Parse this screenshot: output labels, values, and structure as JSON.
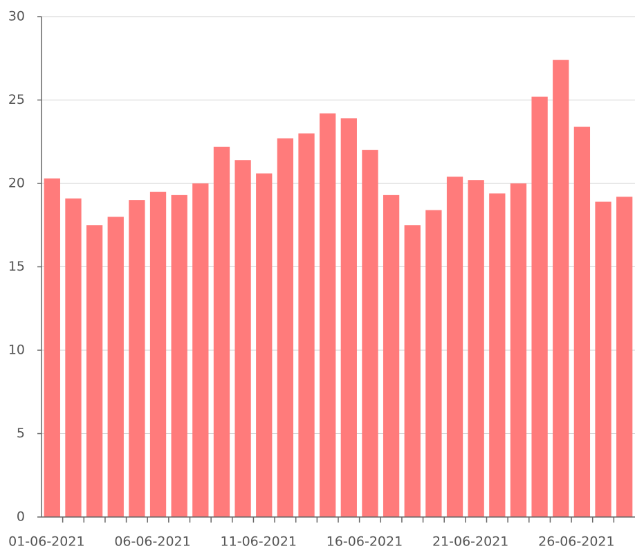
{
  "chart_data": {
    "type": "bar",
    "categories": [
      "01-06-2021",
      null,
      null,
      null,
      null,
      "06-06-2021",
      null,
      null,
      null,
      null,
      "11-06-2021",
      null,
      null,
      null,
      null,
      "16-06-2021",
      null,
      null,
      null,
      null,
      "21-06-2021",
      null,
      null,
      null,
      null,
      "26-06-2021",
      null,
      null
    ],
    "values": [
      20.3,
      19.1,
      17.5,
      18.0,
      19.0,
      19.5,
      19.3,
      20.0,
      22.2,
      21.4,
      20.6,
      22.7,
      23.0,
      24.2,
      23.9,
      22.0,
      19.3,
      17.5,
      18.4,
      20.4,
      20.2,
      19.4,
      20.0,
      25.2,
      27.4,
      23.4,
      18.9,
      19.2
    ],
    "color": "#ff7b7b",
    "ylim": [
      0,
      30
    ],
    "yticks": [
      0,
      5,
      10,
      15,
      20,
      25,
      30
    ],
    "grid": true
  }
}
